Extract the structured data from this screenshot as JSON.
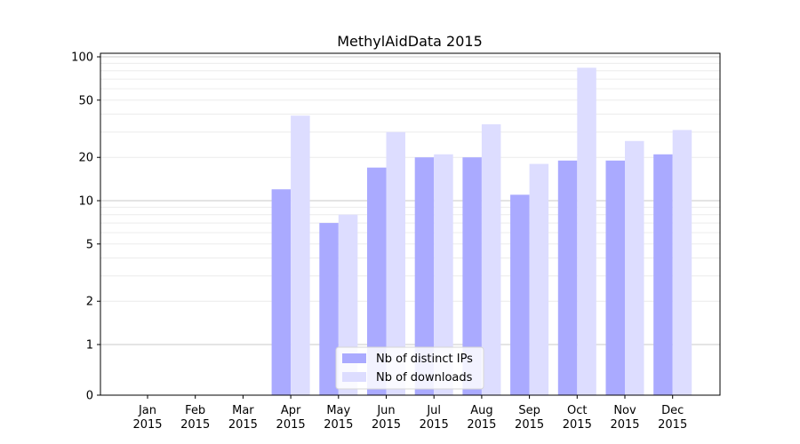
{
  "chart_data": {
    "type": "bar",
    "title": "MethylAidData 2015",
    "xlabel": "",
    "ylabel": "",
    "yscale": "symlog",
    "ylim": [
      0,
      100
    ],
    "yticks": [
      0,
      1,
      2,
      5,
      10,
      20,
      50,
      100
    ],
    "ytick_labels": [
      "0",
      "1",
      "2",
      "5",
      "10",
      "20",
      "50",
      "100"
    ],
    "categories": [
      [
        "Jan",
        "2015"
      ],
      [
        "Feb",
        "2015"
      ],
      [
        "Mar",
        "2015"
      ],
      [
        "Apr",
        "2015"
      ],
      [
        "May",
        "2015"
      ],
      [
        "Jun",
        "2015"
      ],
      [
        "Jul",
        "2015"
      ],
      [
        "Aug",
        "2015"
      ],
      [
        "Sep",
        "2015"
      ],
      [
        "Oct",
        "2015"
      ],
      [
        "Nov",
        "2015"
      ],
      [
        "Dec",
        "2015"
      ]
    ],
    "series": [
      {
        "name": "Nb of distinct IPs",
        "color": "#aaaaff",
        "values": [
          0,
          0,
          0,
          12,
          7,
          17,
          20,
          20,
          11,
          19,
          19,
          21
        ]
      },
      {
        "name": "Nb of downloads",
        "color": "#ddddff",
        "values": [
          0,
          0,
          0,
          39,
          8,
          30,
          21,
          34,
          18,
          84,
          26,
          31
        ]
      }
    ],
    "grid": "y-major-and-minor",
    "legend_position": "lower-center"
  }
}
